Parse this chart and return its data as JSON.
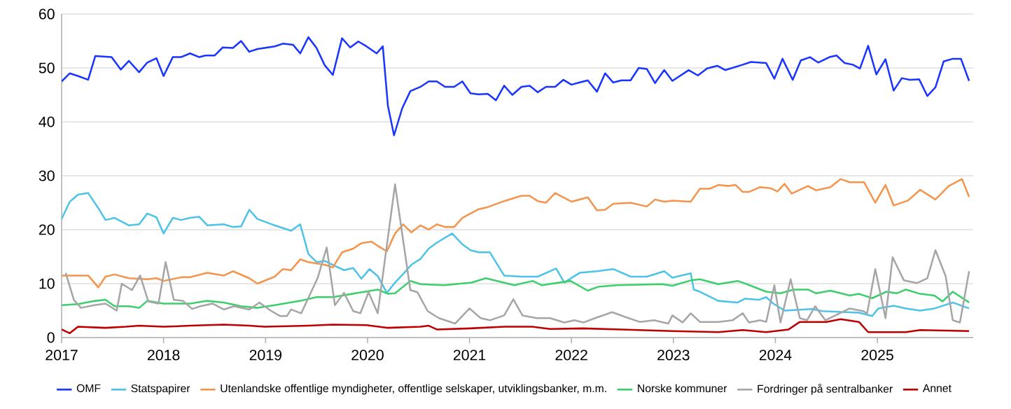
{
  "chart_data": {
    "type": "line",
    "xlim": [
      2017,
      2025.94
    ],
    "ylim": [
      0,
      60
    ],
    "xticks": [
      2017,
      2018,
      2019,
      2020,
      2021,
      2022,
      2023,
      2024,
      2025
    ],
    "yticks": [
      0,
      10,
      20,
      30,
      40,
      50,
      60
    ],
    "grid": "y",
    "legend": "bottom",
    "series": [
      {
        "name": "OMF",
        "color": "#1a35ff",
        "x": [
          2017.0,
          2017.08,
          2017.16,
          2017.26,
          2017.33,
          2017.49,
          2017.58,
          2017.66,
          2017.76,
          2017.84,
          2017.93,
          2018.0,
          2018.09,
          2018.17,
          2018.26,
          2018.35,
          2018.41,
          2018.5,
          2018.58,
          2018.68,
          2018.76,
          2018.84,
          2018.92,
          2019.09,
          2019.17,
          2019.27,
          2019.34,
          2019.42,
          2019.5,
          2019.58,
          2019.66,
          2019.75,
          2019.83,
          2019.91,
          2019.99,
          2020.09,
          2020.15,
          2020.2,
          2020.26,
          2020.34,
          2020.42,
          2020.52,
          2020.6,
          2020.68,
          2020.76,
          2020.85,
          2020.93,
          2021.01,
          2021.09,
          2021.18,
          2021.26,
          2021.34,
          2021.42,
          2021.51,
          2021.59,
          2021.67,
          2021.75,
          2021.84,
          2021.92,
          2022.0,
          2022.08,
          2022.16,
          2022.25,
          2022.33,
          2022.41,
          2022.49,
          2022.58,
          2022.66,
          2022.74,
          2022.82,
          2022.91,
          2022.99,
          2023.15,
          2023.24,
          2023.33,
          2023.43,
          2023.51,
          2023.68,
          2023.76,
          2023.91,
          2023.99,
          2024.07,
          2024.17,
          2024.25,
          2024.34,
          2024.42,
          2024.53,
          2024.6,
          2024.68,
          2024.76,
          2024.83,
          2024.91,
          2024.99,
          2025.08,
          2025.16,
          2025.24,
          2025.32,
          2025.41,
          2025.49,
          2025.57,
          2025.65,
          2025.74,
          2025.82,
          2025.9
        ],
        "values": [
          47.5,
          49,
          48.5,
          47.8,
          52.2,
          52,
          49.7,
          51.3,
          49.2,
          51,
          51.8,
          48.5,
          52,
          52,
          52.7,
          52,
          52.3,
          52.3,
          53.8,
          53.7,
          55,
          53,
          53.5,
          54,
          54.5,
          54.3,
          52.7,
          55.7,
          53.7,
          50.5,
          48.7,
          55.5,
          53.8,
          54.9,
          54,
          52.7,
          54,
          43,
          37.5,
          42.5,
          45.7,
          46.5,
          47.5,
          47.5,
          46.5,
          46.5,
          47.5,
          45.3,
          45.1,
          45.2,
          44,
          46.7,
          45,
          46.5,
          46.7,
          45.5,
          46.5,
          46.5,
          47.8,
          46.9,
          47.3,
          47.7,
          45.6,
          49,
          47.3,
          47.7,
          47.7,
          50,
          49.8,
          47.2,
          49.6,
          47.6,
          49.6,
          48.6,
          49.9,
          50.4,
          49.6,
          50.6,
          51.1,
          50.9,
          48,
          51.7,
          47.8,
          51.4,
          52,
          51,
          52,
          52.3,
          50.9,
          50.6,
          49.9,
          54.1,
          48.8,
          51.6,
          45.8,
          48.1,
          47.8,
          47.9,
          44.8,
          46.4,
          51.2,
          51.7,
          51.7,
          47.6
        ]
      },
      {
        "name": "Statspapirer",
        "color": "#4dc3e8",
        "x": [
          2017.0,
          2017.08,
          2017.16,
          2017.26,
          2017.36,
          2017.43,
          2017.52,
          2017.66,
          2017.76,
          2017.84,
          2017.93,
          2018.0,
          2018.09,
          2018.17,
          2018.26,
          2018.35,
          2018.43,
          2018.59,
          2018.68,
          2018.76,
          2018.84,
          2018.92,
          2019.09,
          2019.25,
          2019.34,
          2019.42,
          2019.5,
          2019.58,
          2019.69,
          2019.77,
          2019.86,
          2019.94,
          2020.02,
          2020.1,
          2020.19,
          2020.27,
          2020.35,
          2020.43,
          2020.52,
          2020.6,
          2020.68,
          2020.83,
          2020.93,
          2021.01,
          2021.09,
          2021.2,
          2021.34,
          2021.51,
          2021.67,
          2021.85,
          2021.93,
          2022.08,
          2022.25,
          2022.41,
          2022.58,
          2022.74,
          2022.91,
          2022.99,
          2023.17,
          2023.2,
          2023.26,
          2023.44,
          2023.63,
          2023.7,
          2023.84,
          2023.91,
          2023.98,
          2024.09,
          2024.36,
          2024.46,
          2024.82,
          2024.95,
          2025.01,
          2025.16,
          2025.28,
          2025.42,
          2025.56,
          2025.74,
          2025.9
        ],
        "values": [
          22,
          25.2,
          26.5,
          26.8,
          24,
          21.8,
          22.2,
          20.8,
          21,
          23,
          22.3,
          19.3,
          22.2,
          21.8,
          22.2,
          22.4,
          20.8,
          21,
          20.5,
          20.6,
          23.7,
          22,
          20.8,
          19.8,
          21,
          15.5,
          14,
          14.2,
          13.2,
          12.5,
          12.9,
          10.9,
          12.7,
          11.4,
          8.3,
          10.2,
          11.8,
          13.5,
          14.6,
          16.5,
          17.6,
          19.3,
          17.3,
          16.2,
          15.8,
          15.8,
          11.5,
          11.3,
          11.3,
          12.8,
          10.2,
          12,
          12.3,
          12.7,
          11.3,
          11.3,
          12.3,
          11.1,
          11.9,
          8.9,
          8.5,
          6.8,
          6.5,
          7.2,
          7,
          7.5,
          6.3,
          5,
          5.3,
          4.9,
          4.6,
          4,
          5.4,
          5.9,
          5.4,
          5,
          5.4,
          6.5,
          5.4
        ]
      },
      {
        "name": "Utenlandske offentlige myndigheter, offentlige selskaper, utviklingsbanker, m.m.",
        "color": "#f5944c",
        "x": [
          2017.0,
          2017.26,
          2017.36,
          2017.43,
          2017.52,
          2017.66,
          2017.84,
          2017.93,
          2018.0,
          2018.18,
          2018.26,
          2018.43,
          2018.59,
          2018.68,
          2018.84,
          2018.92,
          2019.09,
          2019.17,
          2019.25,
          2019.34,
          2019.42,
          2019.58,
          2019.66,
          2019.75,
          2019.86,
          2019.94,
          2020.04,
          2020.1,
          2020.19,
          2020.27,
          2020.35,
          2020.43,
          2020.52,
          2020.6,
          2020.68,
          2020.76,
          2020.85,
          2020.93,
          2021.01,
          2021.09,
          2021.18,
          2021.34,
          2021.51,
          2021.59,
          2021.67,
          2021.75,
          2021.84,
          2022.0,
          2022.16,
          2022.25,
          2022.33,
          2022.41,
          2022.58,
          2022.74,
          2022.82,
          2022.91,
          2022.99,
          2023.17,
          2023.26,
          2023.36,
          2023.44,
          2023.54,
          2023.61,
          2023.68,
          2023.74,
          2023.85,
          2023.95,
          2024.02,
          2024.09,
          2024.16,
          2024.32,
          2024.4,
          2024.54,
          2024.64,
          2024.73,
          2024.87,
          2024.98,
          2025.08,
          2025.16,
          2025.3,
          2025.42,
          2025.57,
          2025.7,
          2025.83,
          2025.9
        ],
        "values": [
          11.5,
          11.5,
          9.3,
          11.3,
          11.7,
          11,
          10.8,
          11,
          10.5,
          11.2,
          11.2,
          12,
          11.5,
          12.3,
          11,
          10,
          11.3,
          12.7,
          12.5,
          14.5,
          14,
          13.5,
          13,
          15.8,
          16.5,
          17.5,
          17.8,
          17,
          16,
          19.3,
          21,
          19.5,
          20.8,
          20,
          21,
          20.5,
          20.5,
          22.2,
          23,
          23.8,
          24.2,
          25.3,
          26.3,
          26.3,
          25.3,
          25,
          26.8,
          25.2,
          26,
          23.6,
          23.7,
          24.8,
          25,
          24.3,
          25.6,
          25.2,
          25.4,
          25.2,
          27.6,
          27.6,
          28.3,
          28.1,
          28.3,
          27,
          27,
          27.9,
          27.7,
          27.1,
          28.5,
          26.7,
          28.1,
          27.3,
          27.9,
          29.4,
          28.8,
          28.8,
          25,
          28.3,
          24.5,
          25.4,
          27.4,
          25.6,
          28.1,
          29.4,
          26.1
        ]
      },
      {
        "name": "Norske kommuner",
        "color": "#3dcf6b",
        "x": [
          2017.0,
          2017.16,
          2017.33,
          2017.43,
          2017.52,
          2017.66,
          2017.76,
          2017.84,
          2018.0,
          2018.26,
          2018.43,
          2018.59,
          2018.76,
          2018.92,
          2019.09,
          2019.34,
          2019.5,
          2019.66,
          2020.1,
          2020.2,
          2020.27,
          2020.42,
          2020.52,
          2020.75,
          2021.02,
          2021.16,
          2021.44,
          2021.62,
          2021.71,
          2021.99,
          2022.16,
          2022.26,
          2022.44,
          2022.89,
          2022.99,
          2023.17,
          2023.26,
          2023.44,
          2023.63,
          2023.72,
          2023.91,
          2024.05,
          2024.18,
          2024.32,
          2024.4,
          2024.54,
          2024.73,
          2024.82,
          2024.95,
          2025.09,
          2025.19,
          2025.28,
          2025.42,
          2025.56,
          2025.64,
          2025.74,
          2025.9
        ],
        "values": [
          6,
          6.2,
          6.8,
          7,
          5.8,
          5.8,
          5.5,
          6.8,
          6.3,
          6.3,
          6.8,
          6.5,
          5.8,
          5.5,
          6,
          6.8,
          7.5,
          7.5,
          8.9,
          8.1,
          8.2,
          10.5,
          9.9,
          9.7,
          10.2,
          11,
          9.7,
          10.5,
          9.7,
          10.5,
          8.7,
          9.4,
          9.7,
          9.9,
          9.6,
          10.6,
          10.8,
          9.9,
          10.5,
          9.9,
          8.5,
          8.2,
          8.9,
          8.9,
          8.2,
          8.7,
          7.8,
          8.1,
          7.3,
          8.5,
          8.2,
          8.9,
          8.1,
          7.8,
          6.7,
          8.5,
          6.5
        ]
      },
      {
        "name": "Fordringer på sentralbanker",
        "color": "#a6a6a6",
        "x": [
          2017.04,
          2017.12,
          2017.19,
          2017.32,
          2017.43,
          2017.54,
          2017.59,
          2017.69,
          2017.77,
          2017.85,
          2017.95,
          2018.02,
          2018.1,
          2018.19,
          2018.28,
          2018.36,
          2018.48,
          2018.59,
          2018.69,
          2018.84,
          2018.94,
          2019.05,
          2019.14,
          2019.21,
          2019.25,
          2019.35,
          2019.51,
          2019.6,
          2019.68,
          2019.77,
          2019.86,
          2019.93,
          2020.01,
          2020.1,
          2020.27,
          2020.42,
          2020.49,
          2020.59,
          2020.7,
          2020.86,
          2021.0,
          2021.11,
          2021.2,
          2021.34,
          2021.43,
          2021.52,
          2021.66,
          2021.79,
          2021.93,
          2022.03,
          2022.12,
          2022.26,
          2022.4,
          2022.53,
          2022.67,
          2022.81,
          2022.95,
          2022.99,
          2023.09,
          2023.17,
          2023.26,
          2023.44,
          2023.58,
          2023.68,
          2023.74,
          2023.85,
          2023.91,
          2023.99,
          2024.05,
          2024.15,
          2024.24,
          2024.31,
          2024.39,
          2024.49,
          2024.73,
          2024.86,
          2024.9,
          2024.98,
          2025.08,
          2025.15,
          2025.26,
          2025.39,
          2025.49,
          2025.57,
          2025.67,
          2025.74,
          2025.81,
          2025.9
        ],
        "values": [
          12,
          7,
          5.5,
          6,
          6.3,
          5,
          10,
          8.8,
          11.5,
          6.7,
          6.3,
          14,
          7,
          6.8,
          5.3,
          5.8,
          6.3,
          5.2,
          5.8,
          5.2,
          6.5,
          5,
          4,
          4,
          5.2,
          4.5,
          11,
          16.7,
          6,
          8.3,
          4.9,
          4.5,
          8.4,
          4.5,
          28.4,
          8.8,
          8.4,
          4.9,
          3.6,
          2.6,
          5.4,
          3.6,
          3.2,
          4.1,
          7.1,
          4.1,
          3.6,
          3.6,
          2.8,
          3.2,
          2.8,
          3.8,
          4.7,
          3.8,
          2.9,
          3.2,
          2.6,
          4.1,
          2.8,
          4.5,
          2.9,
          2.9,
          3.2,
          4.5,
          2.8,
          3.2,
          2.9,
          9.7,
          2.8,
          10.8,
          3.6,
          3.2,
          5.8,
          3.2,
          5.4,
          4.9,
          4.5,
          12.7,
          3.6,
          14.9,
          10.6,
          10.1,
          11,
          16.2,
          11.4,
          3.2,
          2.8,
          12.3
        ]
      },
      {
        "name": "Annet",
        "color": "#c00000",
        "x": [
          2017.0,
          2017.08,
          2017.16,
          2017.43,
          2017.63,
          2017.76,
          2018.0,
          2018.26,
          2018.59,
          2018.84,
          2018.99,
          2019.42,
          2019.66,
          2019.99,
          2020.19,
          2020.52,
          2020.6,
          2020.68,
          2021.01,
          2021.34,
          2021.62,
          2021.79,
          2022.11,
          2022.49,
          2022.99,
          2023.44,
          2023.68,
          2023.91,
          2024.13,
          2024.24,
          2024.5,
          2024.64,
          2024.82,
          2024.91,
          2025.28,
          2025.42,
          2025.9
        ],
        "values": [
          1.5,
          0.8,
          2,
          1.8,
          2,
          2.2,
          2,
          2.2,
          2.4,
          2.2,
          2,
          2.2,
          2.4,
          2.3,
          1.8,
          2,
          2.2,
          1.5,
          1.7,
          2,
          2,
          1.6,
          1.7,
          1.5,
          1.2,
          1,
          1.4,
          1,
          1.5,
          2.9,
          2.9,
          3.4,
          2.9,
          1,
          1,
          1.4,
          1.2
        ]
      }
    ]
  }
}
